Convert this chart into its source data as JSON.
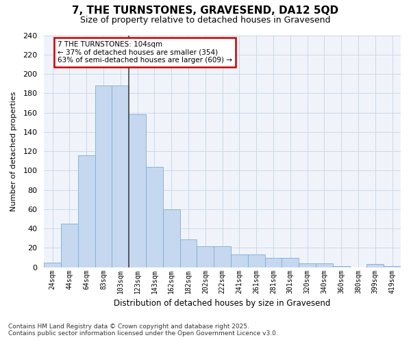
{
  "title": "7, THE TURNSTONES, GRAVESEND, DA12 5QD",
  "subtitle": "Size of property relative to detached houses in Gravesend",
  "xlabel": "Distribution of detached houses by size in Gravesend",
  "ylabel": "Number of detached properties",
  "categories": [
    "24sqm",
    "44sqm",
    "64sqm",
    "83sqm",
    "103sqm",
    "123sqm",
    "143sqm",
    "162sqm",
    "182sqm",
    "202sqm",
    "222sqm",
    "241sqm",
    "261sqm",
    "281sqm",
    "301sqm",
    "320sqm",
    "340sqm",
    "360sqm",
    "380sqm",
    "399sqm",
    "419sqm"
  ],
  "values": [
    5,
    45,
    116,
    188,
    188,
    158,
    104,
    60,
    29,
    22,
    22,
    13,
    13,
    10,
    10,
    4,
    4,
    1,
    0,
    3,
    1
  ],
  "bar_color": "#c5d8f0",
  "bar_edge_color": "#7aadd4",
  "grid_color": "#c8d8eb",
  "background_color": "#ffffff",
  "plot_bg_color": "#f0f4fa",
  "marker_label": "7 THE TURNSTONES: 104sqm",
  "annotation_line1": "← 37% of detached houses are smaller (354)",
  "annotation_line2": "63% of semi-detached houses are larger (609) →",
  "annotation_box_color": "#ffffff",
  "annotation_box_edge": "#cc0000",
  "vline_color": "#444444",
  "footer_line1": "Contains HM Land Registry data © Crown copyright and database right 2025.",
  "footer_line2": "Contains public sector information licensed under the Open Government Licence v3.0.",
  "ylim": [
    0,
    240
  ],
  "yticks": [
    0,
    20,
    40,
    60,
    80,
    100,
    120,
    140,
    160,
    180,
    200,
    220,
    240
  ],
  "vline_index": 4.5
}
